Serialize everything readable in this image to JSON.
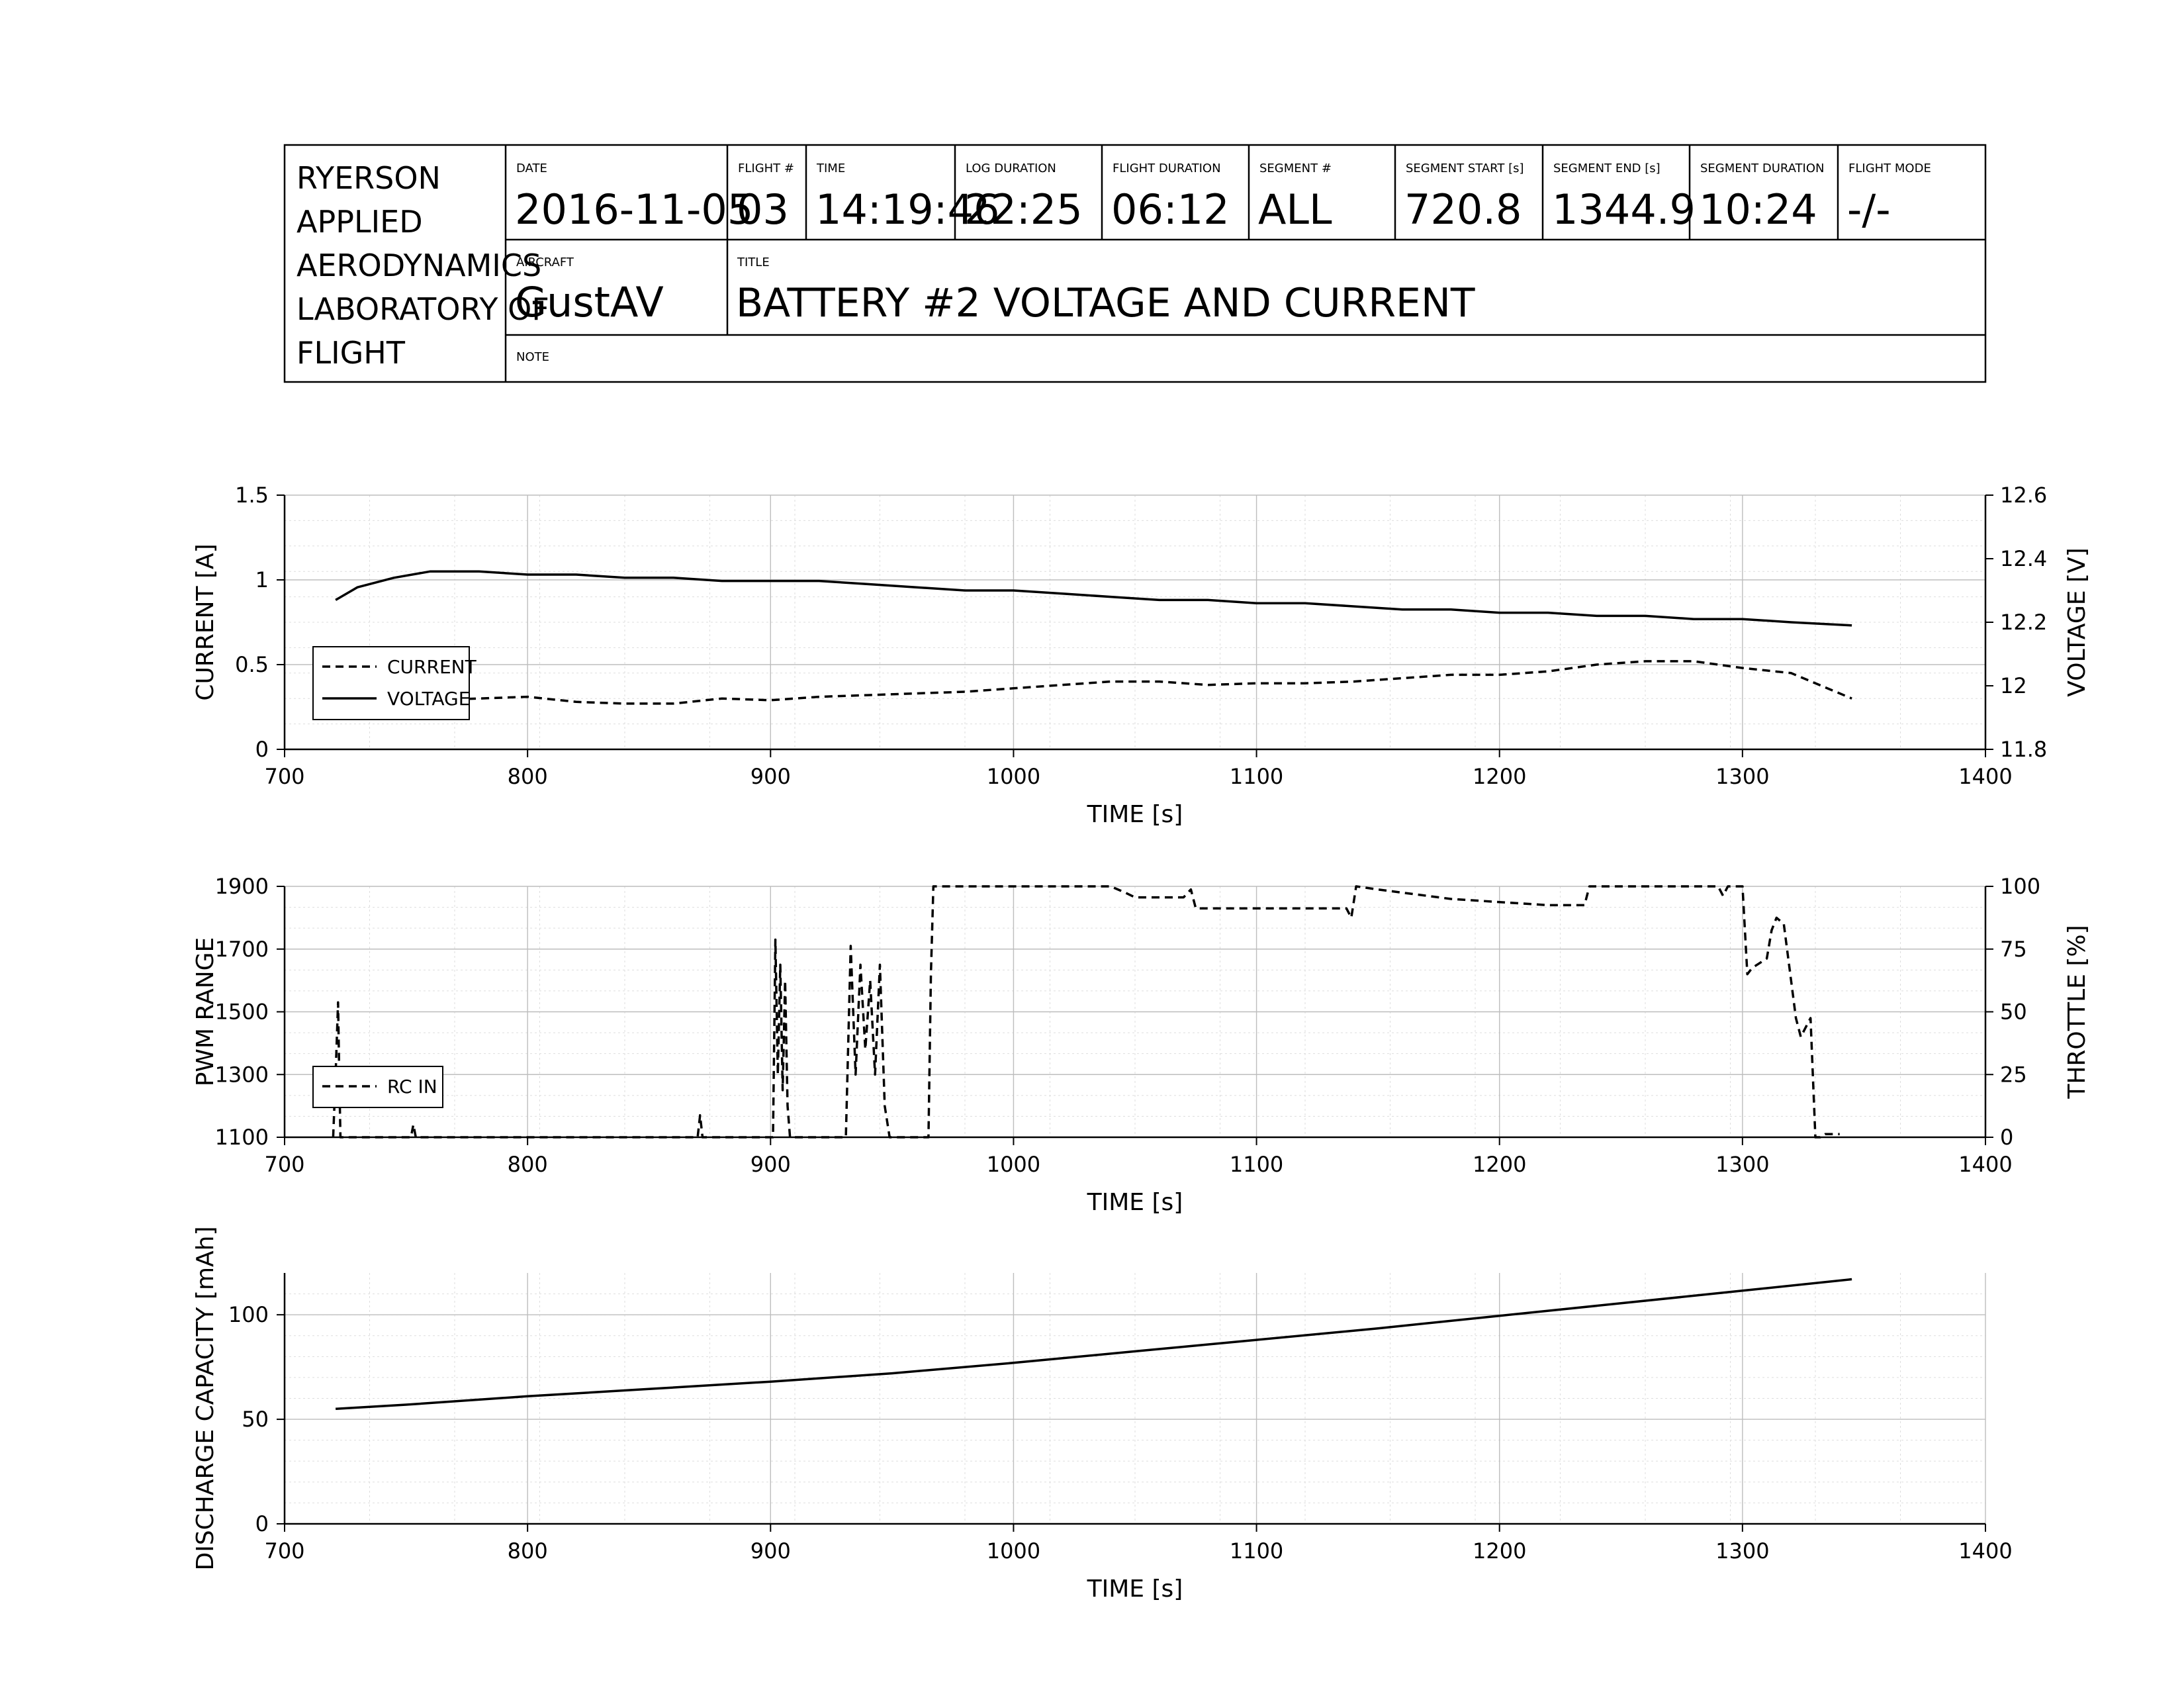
{
  "title_block": {
    "organization": [
      "RYERSON",
      "APPLIED",
      "AERODYNAMICS",
      "LABORATORY OF",
      "FLIGHT"
    ],
    "fields": [
      {
        "label": "DATE",
        "value": "2016-11-05"
      },
      {
        "label": "FLIGHT #",
        "value": "03"
      },
      {
        "label": "TIME",
        "value": "14:19:46"
      },
      {
        "label": "LOG DURATION",
        "value": "22:25"
      },
      {
        "label": "FLIGHT DURATION",
        "value": "06:12"
      },
      {
        "label": "SEGMENT #",
        "value": "ALL"
      },
      {
        "label": "SEGMENT START [s]",
        "value": "720.8"
      },
      {
        "label": "SEGMENT END [s]",
        "value": "1344.9"
      },
      {
        "label": "SEGMENT DURATION",
        "value": "10:24"
      },
      {
        "label": "FLIGHT MODE",
        "value": "-/-"
      }
    ],
    "aircraft_label": "AIRCRAFT",
    "aircraft": "GustAV",
    "title_label": "TITLE",
    "title": "BATTERY #2 VOLTAGE AND CURRENT",
    "note_label": "NOTE",
    "note": ""
  },
  "chart_data": [
    {
      "type": "line",
      "xlabel": "TIME [s]",
      "ylabel": "CURRENT [A]",
      "y2label": "VOLTAGE [V]",
      "xlim": [
        700,
        1400
      ],
      "ylim": [
        0,
        1.5
      ],
      "y2lim": [
        11.8,
        12.6
      ],
      "xticks": [
        "700",
        "800",
        "900",
        "1000",
        "1100",
        "1200",
        "1300",
        "1400"
      ],
      "yticks": [
        "0",
        "0.5",
        "1",
        "1.5"
      ],
      "y2ticks": [
        "11.8",
        "12",
        "12.2",
        "12.4",
        "12.6"
      ],
      "grid": true,
      "legend": "lower-left",
      "series": [
        {
          "name": "CURRENT",
          "axis": "left",
          "style": "dashed",
          "x": [
            721,
            740,
            760,
            780,
            800,
            820,
            840,
            860,
            880,
            900,
            920,
            940,
            960,
            980,
            1000,
            1020,
            1040,
            1060,
            1080,
            1100,
            1120,
            1140,
            1160,
            1180,
            1200,
            1220,
            1240,
            1260,
            1280,
            1300,
            1320,
            1345
          ],
          "y": [
            0.28,
            0.28,
            0.29,
            0.3,
            0.31,
            0.28,
            0.27,
            0.27,
            0.3,
            0.29,
            0.31,
            0.32,
            0.33,
            0.34,
            0.36,
            0.38,
            0.4,
            0.4,
            0.38,
            0.39,
            0.39,
            0.4,
            0.42,
            0.44,
            0.44,
            0.46,
            0.5,
            0.52,
            0.52,
            0.48,
            0.45,
            0.3
          ]
        },
        {
          "name": "VOLTAGE",
          "axis": "right",
          "style": "solid",
          "x": [
            721,
            730,
            745,
            760,
            780,
            800,
            820,
            840,
            860,
            880,
            900,
            920,
            940,
            960,
            980,
            1000,
            1020,
            1040,
            1060,
            1080,
            1100,
            1120,
            1140,
            1160,
            1180,
            1200,
            1220,
            1240,
            1260,
            1280,
            1300,
            1320,
            1345
          ],
          "y": [
            12.27,
            12.31,
            12.34,
            12.36,
            12.36,
            12.35,
            12.35,
            12.34,
            12.34,
            12.33,
            12.33,
            12.33,
            12.32,
            12.31,
            12.3,
            12.3,
            12.29,
            12.28,
            12.27,
            12.27,
            12.26,
            12.26,
            12.25,
            12.24,
            12.24,
            12.23,
            12.23,
            12.22,
            12.22,
            12.21,
            12.21,
            12.2,
            12.19
          ]
        }
      ]
    },
    {
      "type": "line",
      "xlabel": "TIME [s]",
      "ylabel": "PWM RANGE",
      "y2label": "THROTTLE [%]",
      "xlim": [
        700,
        1400
      ],
      "ylim": [
        1100,
        1900
      ],
      "y2lim": [
        0,
        100
      ],
      "xticks": [
        "700",
        "800",
        "900",
        "1000",
        "1100",
        "1200",
        "1300",
        "1400"
      ],
      "yticks": [
        "1100",
        "1300",
        "1500",
        "1700",
        "1900"
      ],
      "y2ticks": [
        "0",
        "25",
        "50",
        "75",
        "100"
      ],
      "grid": true,
      "legend": "lower-left",
      "series": [
        {
          "name": "RC IN",
          "axis": "left",
          "style": "dashed",
          "x": [
            720,
            721,
            722,
            722.5,
            723,
            752,
            753,
            754,
            755,
            870,
            871,
            872,
            901,
            902,
            903,
            904,
            905,
            906,
            907,
            908,
            931,
            933,
            935,
            937,
            939,
            941,
            943,
            945,
            947,
            949,
            965,
            966,
            967,
            968,
            1000,
            1040,
            1046,
            1050,
            1070,
            1073,
            1075,
            1100,
            1137,
            1139,
            1141,
            1150,
            1160,
            1170,
            1180,
            1200,
            1220,
            1235,
            1237,
            1260,
            1290,
            1292,
            1294,
            1300,
            1302,
            1304,
            1310,
            1312,
            1314,
            1317,
            1320,
            1322,
            1324,
            1326,
            1328,
            1330,
            1332,
            1334,
            1340
          ],
          "y": [
            1100,
            1300,
            1530,
            1300,
            1100,
            1100,
            1140,
            1100,
            1100,
            1100,
            1170,
            1100,
            1100,
            1730,
            1300,
            1650,
            1250,
            1600,
            1200,
            1100,
            1100,
            1710,
            1300,
            1650,
            1380,
            1600,
            1300,
            1650,
            1200,
            1100,
            1100,
            1620,
            1900,
            1900,
            1900,
            1900,
            1880,
            1865,
            1865,
            1890,
            1830,
            1830,
            1830,
            1800,
            1900,
            1890,
            1880,
            1870,
            1860,
            1850,
            1840,
            1840,
            1900,
            1900,
            1900,
            1870,
            1900,
            1900,
            1620,
            1640,
            1670,
            1760,
            1800,
            1780,
            1600,
            1480,
            1420,
            1450,
            1480,
            1100,
            1100,
            1110,
            1110
          ]
        }
      ]
    },
    {
      "type": "line",
      "xlabel": "TIME [s]",
      "ylabel": "DISCHARGE CAPACITY [mAh]",
      "xlim": [
        700,
        1400
      ],
      "ylim": [
        0,
        120
      ],
      "xticks": [
        "700",
        "800",
        "900",
        "1000",
        "1100",
        "1200",
        "1300",
        "1400"
      ],
      "yticks": [
        "0",
        "50",
        "100"
      ],
      "grid": true,
      "series": [
        {
          "name": "",
          "style": "solid",
          "x": [
            721,
            750,
            800,
            850,
            900,
            950,
            1000,
            1050,
            1100,
            1150,
            1200,
            1250,
            1300,
            1345
          ],
          "y": [
            55,
            57,
            61,
            64.5,
            68,
            72,
            77,
            82.5,
            88,
            93.5,
            99.5,
            105.5,
            111.5,
            117
          ]
        }
      ]
    }
  ]
}
